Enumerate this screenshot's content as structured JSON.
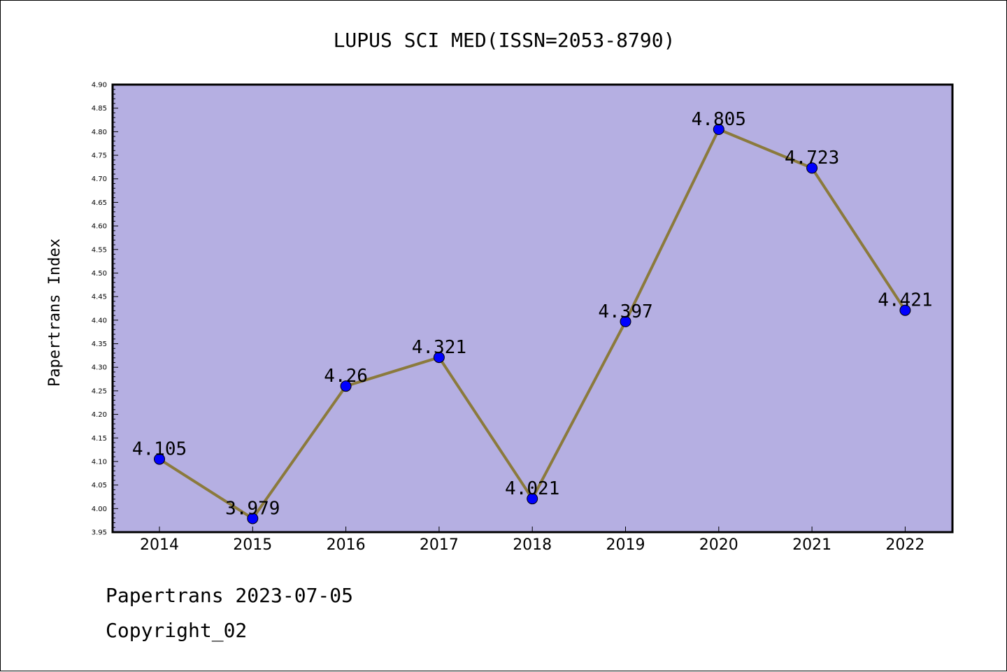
{
  "colors": {
    "plot_background": "#b5afe2",
    "line": "#8b7a3c",
    "marker": "#0000ff"
  },
  "footer": {
    "line1": "Papertrans 2023-07-05",
    "line2": "Copyright_02"
  },
  "chart_data": {
    "type": "line",
    "title": "LUPUS SCI MED(ISSN=2053-8790)",
    "xlabel": "",
    "ylabel": "Papertrans Index",
    "categories": [
      "2014",
      "2015",
      "2016",
      "2017",
      "2018",
      "2019",
      "2020",
      "2021",
      "2022"
    ],
    "series": [
      {
        "values": [
          4.105,
          3.979,
          4.26,
          4.321,
          4.021,
          4.397,
          4.805,
          4.723,
          4.421
        ],
        "data_labels": [
          "4.105",
          "3.979",
          "4.26",
          "4.321",
          "4.021",
          "4.397",
          "4.805",
          "4.723",
          "4.421"
        ]
      }
    ],
    "ylim": [
      3.95,
      4.9
    ],
    "yticks": [
      "3.95",
      "4.00",
      "4.05",
      "4.10",
      "4.15",
      "4.20",
      "4.25",
      "4.30",
      "4.35",
      "4.40",
      "4.45",
      "4.50",
      "4.55",
      "4.60",
      "4.65",
      "4.70",
      "4.75",
      "4.80",
      "4.85",
      "4.90"
    ],
    "grid": false,
    "legend": "none"
  }
}
